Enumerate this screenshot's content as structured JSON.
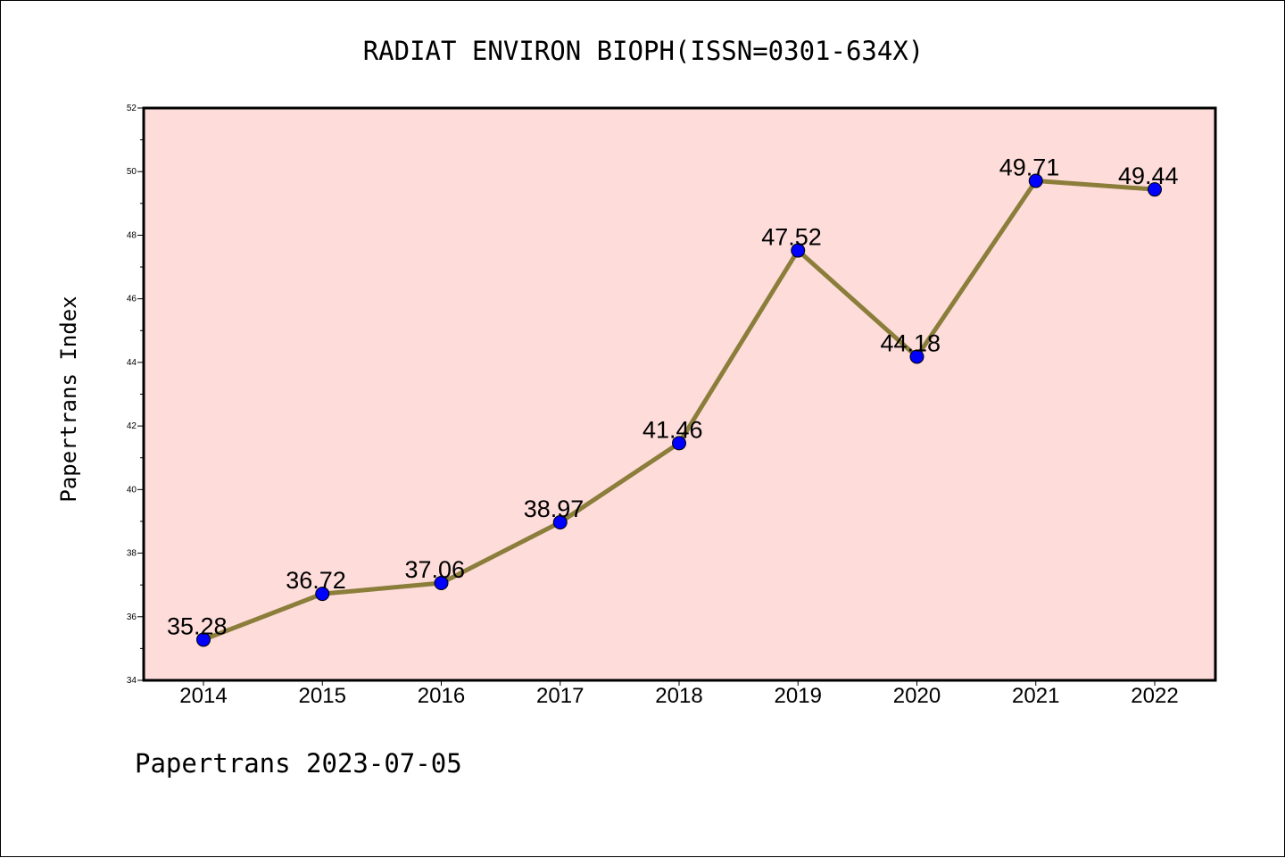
{
  "chart_data": {
    "type": "line",
    "title": "RADIAT ENVIRON BIOPH(ISSN=0301-634X)",
    "xlabel": "",
    "ylabel": "Papertrans Index",
    "footer": "Papertrans 2023-07-05",
    "categories": [
      "2014",
      "2015",
      "2016",
      "2017",
      "2018",
      "2019",
      "2020",
      "2021",
      "2022"
    ],
    "series": [
      {
        "values": [
          35.28,
          36.72,
          37.06,
          38.97,
          41.46,
          47.52,
          44.18,
          49.71,
          49.44
        ],
        "data_labels": [
          "35.28",
          "36.72",
          "37.06",
          "38.97",
          "41.46",
          "47.52",
          "44.18",
          "49.71",
          "49.44"
        ],
        "line_color": "#8b7d3a",
        "marker_color": "#0000ff"
      }
    ],
    "ylim": [
      34,
      52
    ],
    "yticks": [
      "34",
      "36",
      "38",
      "40",
      "42",
      "44",
      "46",
      "48",
      "50",
      "52"
    ],
    "grid": false,
    "legend": "none",
    "plot_background": "#fddcda"
  }
}
